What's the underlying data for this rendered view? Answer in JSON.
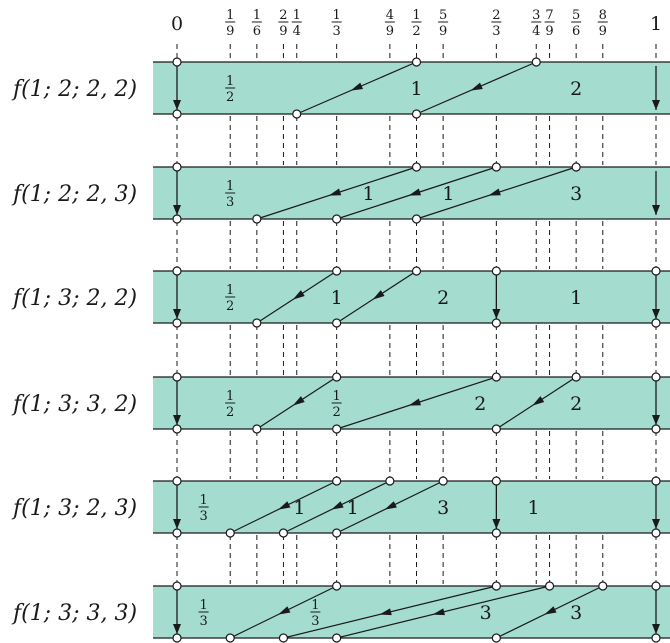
{
  "colors": {
    "band_fill": "#a4dcd0",
    "line": "#1a1a1a",
    "node_fill": "#ffffff"
  },
  "ticks": [
    {
      "num": "0",
      "den": ""
    },
    {
      "num": "1",
      "den": "9"
    },
    {
      "num": "1",
      "den": "6"
    },
    {
      "num": "2",
      "den": "9"
    },
    {
      "num": "1",
      "den": "4"
    },
    {
      "num": "1",
      "den": "3"
    },
    {
      "num": "4",
      "den": "9"
    },
    {
      "num": "1",
      "den": "2"
    },
    {
      "num": "5",
      "den": "9"
    },
    {
      "num": "2",
      "den": "3"
    },
    {
      "num": "3",
      "den": "4"
    },
    {
      "num": "7",
      "den": "9"
    },
    {
      "num": "5",
      "den": "6"
    },
    {
      "num": "8",
      "den": "9"
    },
    {
      "num": "1",
      "den": ""
    }
  ],
  "tick_values": [
    0,
    0.1111,
    0.1667,
    0.2222,
    0.25,
    0.3333,
    0.4444,
    0.5,
    0.5556,
    0.6667,
    0.75,
    0.7778,
    0.8333,
    0.8889,
    1
  ],
  "rows": [
    {
      "label": "f(1; 2; 2, 2)",
      "top_nodes": [
        0,
        0.5,
        0.75
      ],
      "bottom_nodes": [
        0,
        0.25,
        0.5
      ],
      "arrows": [
        [
          0.5,
          0.25
        ],
        [
          0.75,
          0.5
        ]
      ],
      "down_arrows": [
        0,
        1
      ],
      "texts": [
        {
          "num": "1",
          "den": "2",
          "x": 0.111
        },
        {
          "num": "1",
          "den": "",
          "x": 0.5
        },
        {
          "num": "2",
          "den": "",
          "x": 0.8333
        }
      ]
    },
    {
      "label": "f(1; 2; 2, 3)",
      "top_nodes": [
        0,
        0.5,
        0.6667,
        0.8333
      ],
      "bottom_nodes": [
        0,
        0.1667,
        0.3333,
        0.5
      ],
      "arrows": [
        [
          0.5,
          0.1667
        ],
        [
          0.6667,
          0.3333
        ],
        [
          0.8333,
          0.5
        ]
      ],
      "down_arrows": [
        0,
        1
      ],
      "texts": [
        {
          "num": "1",
          "den": "3",
          "x": 0.111
        },
        {
          "num": "1",
          "den": "",
          "x": 0.4
        },
        {
          "num": "1",
          "den": "",
          "x": 0.5667
        },
        {
          "num": "3",
          "den": "",
          "x": 0.8333
        }
      ]
    },
    {
      "label": "f(1; 3; 2, 2)",
      "top_nodes": [
        0,
        0.3333,
        0.5,
        0.6667,
        1
      ],
      "bottom_nodes": [
        0,
        0.1667,
        0.3333,
        0.6667,
        1
      ],
      "arrows": [
        [
          0.3333,
          0.1667
        ],
        [
          0.5,
          0.3333
        ]
      ],
      "down_arrows": [
        0,
        0.6667,
        1
      ],
      "texts": [
        {
          "num": "1",
          "den": "2",
          "x": 0.111
        },
        {
          "num": "1",
          "den": "",
          "x": 0.3333
        },
        {
          "num": "2",
          "den": "",
          "x": 0.5556
        },
        {
          "num": "1",
          "den": "",
          "x": 0.8333
        }
      ]
    },
    {
      "label": "f(1; 3; 3, 2)",
      "top_nodes": [
        0,
        0.3333,
        0.6667,
        0.8333,
        1
      ],
      "bottom_nodes": [
        0,
        0.1667,
        0.3333,
        0.6667,
        1
      ],
      "arrows": [
        [
          0.3333,
          0.1667
        ],
        [
          0.6667,
          0.3333
        ],
        [
          0.8333,
          0.6667
        ]
      ],
      "down_arrows": [
        0,
        1
      ],
      "texts": [
        {
          "num": "1",
          "den": "2",
          "x": 0.111
        },
        {
          "num": "1",
          "den": "2",
          "x": 0.3333
        },
        {
          "num": "2",
          "den": "",
          "x": 0.6333
        },
        {
          "num": "2",
          "den": "",
          "x": 0.8333
        }
      ]
    },
    {
      "label": "f(1; 3; 2, 3)",
      "top_nodes": [
        0,
        0.3333,
        0.4444,
        0.5556,
        0.6667,
        1
      ],
      "bottom_nodes": [
        0,
        0.1111,
        0.2222,
        0.3333,
        0.6667,
        1
      ],
      "arrows": [
        [
          0.3333,
          0.1111
        ],
        [
          0.4444,
          0.2222
        ],
        [
          0.5556,
          0.3333
        ]
      ],
      "down_arrows": [
        0,
        0.6667,
        1
      ],
      "texts": [
        {
          "num": "1",
          "den": "3",
          "x": 0.0556
        },
        {
          "num": "1",
          "den": "",
          "x": 0.2556
        },
        {
          "num": "1",
          "den": "",
          "x": 0.3667
        },
        {
          "num": "3",
          "den": "",
          "x": 0.5556
        },
        {
          "num": "1",
          "den": "",
          "x": 0.7444
        }
      ]
    },
    {
      "label": "f(1; 3; 3, 3)",
      "top_nodes": [
        0,
        0.3333,
        0.6667,
        0.7778,
        0.8889,
        1
      ],
      "bottom_nodes": [
        0,
        0.1111,
        0.2222,
        0.3333,
        0.6667,
        1
      ],
      "arrows": [
        [
          0.3333,
          0.1111
        ],
        [
          0.6667,
          0.2222
        ],
        [
          0.7778,
          0.3333
        ],
        [
          0.8889,
          0.6667
        ]
      ],
      "down_arrows": [
        0,
        1
      ],
      "texts": [
        {
          "num": "1",
          "den": "3",
          "x": 0.0556
        },
        {
          "num": "1",
          "den": "3",
          "x": 0.2889
        },
        {
          "num": "3",
          "den": "",
          "x": 0.6444
        },
        {
          "num": "3",
          "den": "",
          "x": 0.8333
        }
      ]
    }
  ]
}
